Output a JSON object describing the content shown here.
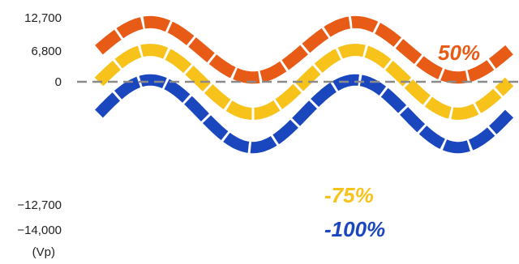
{
  "chart_data": {
    "type": "line",
    "title": "",
    "xlabel": "",
    "ylabel": "(Vp)",
    "yticks": [
      {
        "value": 12700,
        "label": "12,700"
      },
      {
        "value": 6800,
        "label": "6,800"
      },
      {
        "value": 0,
        "label": "0"
      },
      {
        "value": -12700,
        "label": "−12,700"
      },
      {
        "value": -14000,
        "label": "−14,000"
      }
    ],
    "reference_line": {
      "value": 0,
      "style": "dashed",
      "color": "#888888"
    },
    "grid": false,
    "cycles": 2,
    "series": [
      {
        "name": "50%",
        "color": "#e85b16",
        "offset": 6800,
        "amplitude": 5900
      },
      {
        "name": "-75%",
        "color": "#f7c21a",
        "offset": 0,
        "amplitude": 6800
      },
      {
        "name": "-100%",
        "color": "#1a47bd",
        "offset": -6800,
        "amplitude": 7200
      }
    ]
  }
}
